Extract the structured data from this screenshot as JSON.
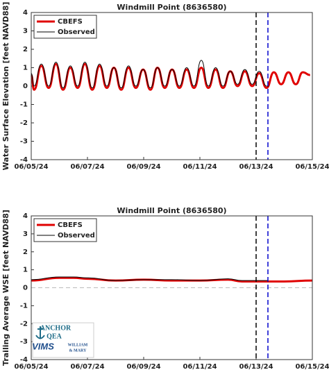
{
  "chart_data": [
    {
      "type": "line",
      "title": "Windmill Point (8636580)",
      "ylabel": "Water Surface Elevation [feet NAVD88]",
      "xlim": [
        0,
        10
      ],
      "xticks": [
        {
          "value": 0,
          "label": "06/05/24"
        },
        {
          "value": 2,
          "label": "06/07/24"
        },
        {
          "value": 4,
          "label": "06/09/24"
        },
        {
          "value": 6,
          "label": "06/11/24"
        },
        {
          "value": 8,
          "label": "06/13/24"
        },
        {
          "value": 10,
          "label": "06/15/24"
        }
      ],
      "ylim": [
        -4,
        4
      ],
      "yticks": [
        -4,
        -3,
        -2,
        -1,
        0,
        1,
        2,
        3,
        4
      ],
      "grid": false,
      "legend": "upper left",
      "vlines": [
        {
          "x": 8,
          "color": "#000000"
        },
        {
          "x": 8.42,
          "color": "#0000cc"
        }
      ],
      "series": [
        {
          "name": "CBEFS",
          "color": "#e00000",
          "linewidth": 3,
          "x": [
            0,
            0.1,
            0.36,
            0.62,
            0.88,
            1.13,
            1.39,
            1.65,
            1.91,
            2.17,
            2.43,
            2.69,
            2.94,
            3.2,
            3.46,
            3.72,
            3.98,
            4.24,
            4.49,
            4.75,
            5.01,
            5.27,
            5.53,
            5.79,
            6.05,
            6.3,
            6.56,
            6.82,
            7.08,
            7.34,
            7.6,
            7.86,
            8.11,
            8.37,
            8.63,
            8.89,
            9.15,
            9.41,
            9.66,
            9.92
          ],
          "values": [
            0.6,
            -0.2,
            1.1,
            -0.1,
            1.2,
            -0.2,
            1.0,
            -0.1,
            1.2,
            -0.2,
            1.1,
            -0.1,
            1.0,
            -0.2,
            1.0,
            -0.1,
            0.9,
            -0.2,
            1.0,
            -0.1,
            0.9,
            -0.1,
            0.9,
            -0.1,
            1.0,
            -0.1,
            0.9,
            -0.1,
            0.8,
            0.0,
            0.8,
            0.0,
            0.7,
            -0.1,
            0.75,
            0.1,
            0.75,
            0.1,
            0.75,
            0.6
          ]
        },
        {
          "name": "Observed",
          "color": "#000000",
          "linewidth": 1,
          "x": [
            0,
            0.1,
            0.36,
            0.62,
            0.88,
            1.13,
            1.39,
            1.65,
            1.91,
            2.17,
            2.43,
            2.69,
            2.94,
            3.2,
            3.46,
            3.72,
            3.98,
            4.24,
            4.49,
            4.75,
            5.01,
            5.27,
            5.53,
            5.79,
            6.05,
            6.3,
            6.56,
            6.82,
            7.08,
            7.34,
            7.6,
            7.86,
            8.11,
            8.37,
            8.45
          ],
          "values": [
            0.7,
            0.0,
            1.2,
            0.0,
            1.3,
            -0.1,
            1.1,
            0.0,
            1.3,
            -0.1,
            1.2,
            0.0,
            1.0,
            -0.1,
            1.1,
            0.0,
            0.9,
            -0.1,
            1.0,
            0.0,
            0.9,
            0.0,
            1.0,
            0.0,
            1.4,
            0.0,
            1.0,
            0.0,
            0.8,
            0.1,
            0.9,
            0.1,
            0.8,
            0.0,
            0.0
          ]
        }
      ]
    },
    {
      "type": "line",
      "title": "Windmill Point (8636580)",
      "ylabel": "Trailing Average WSE [feet NAVD88]",
      "xlim": [
        0,
        10
      ],
      "xticks": [
        {
          "value": 0,
          "label": "06/05/24"
        },
        {
          "value": 2,
          "label": "06/07/24"
        },
        {
          "value": 4,
          "label": "06/09/24"
        },
        {
          "value": 6,
          "label": "06/11/24"
        },
        {
          "value": 8,
          "label": "06/13/24"
        },
        {
          "value": 10,
          "label": "06/15/24"
        }
      ],
      "ylim": [
        -4,
        4
      ],
      "yticks": [
        -4,
        -3,
        -2,
        -1,
        0,
        1,
        2,
        3,
        4
      ],
      "grid": false,
      "legend": "upper left",
      "hline": 0,
      "vlines": [
        {
          "x": 8,
          "color": "#000000"
        },
        {
          "x": 8.42,
          "color": "#0000cc"
        }
      ],
      "annotations": [
        "ANCHOR",
        "QEA",
        "VIMS",
        "WILLIAM",
        "& MARY"
      ],
      "series": [
        {
          "name": "CBEFS",
          "color": "#e00000",
          "linewidth": 3,
          "x": [
            0,
            1,
            1.5,
            2,
            3,
            4,
            5,
            6,
            7,
            7.5,
            8,
            9,
            10
          ],
          "values": [
            0.4,
            0.55,
            0.55,
            0.5,
            0.4,
            0.45,
            0.4,
            0.4,
            0.45,
            0.35,
            0.35,
            0.35,
            0.4
          ]
        },
        {
          "name": "Observed",
          "color": "#000000",
          "linewidth": 1,
          "x": [
            0,
            1,
            1.5,
            2,
            3,
            4,
            5,
            6,
            7,
            7.5,
            8,
            8.42
          ],
          "values": [
            0.45,
            0.6,
            0.6,
            0.55,
            0.4,
            0.45,
            0.45,
            0.4,
            0.5,
            0.4,
            0.4,
            0.4
          ]
        }
      ]
    }
  ]
}
